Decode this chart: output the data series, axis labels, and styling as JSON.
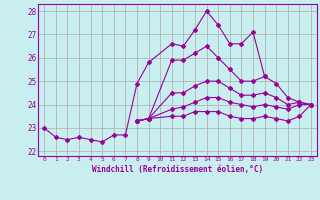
{
  "title": "",
  "xlabel": "Windchill (Refroidissement éolien,°C)",
  "ylabel": "",
  "bg_color": "#c8eef0",
  "line_color": "#990099",
  "grid_color": "#aaaaaa",
  "xlim": [
    -0.5,
    23.5
  ],
  "ylim": [
    21.8,
    28.3
  ],
  "yticks": [
    22,
    23,
    24,
    25,
    26,
    27,
    28
  ],
  "xticks": [
    0,
    1,
    2,
    3,
    4,
    5,
    6,
    7,
    8,
    9,
    10,
    11,
    12,
    13,
    14,
    15,
    16,
    17,
    18,
    19,
    20,
    21,
    22,
    23
  ],
  "lines": [
    {
      "x": [
        0,
        1,
        2,
        3,
        4,
        5,
        6,
        7,
        8,
        9,
        11,
        12,
        13,
        14,
        15,
        16,
        17,
        18,
        19
      ],
      "y": [
        23.0,
        22.6,
        22.5,
        22.6,
        22.5,
        22.4,
        22.7,
        22.7,
        24.9,
        25.8,
        26.6,
        26.5,
        27.2,
        28.0,
        27.4,
        26.6,
        26.6,
        27.1,
        25.2
      ]
    },
    {
      "x": [
        8,
        9,
        11,
        12,
        13,
        14,
        15,
        16,
        17,
        18,
        19,
        20,
        21,
        22,
        23
      ],
      "y": [
        23.3,
        23.4,
        25.9,
        25.9,
        26.2,
        26.5,
        26.0,
        25.5,
        25.0,
        25.0,
        25.2,
        24.9,
        24.3,
        24.1,
        24.0
      ]
    },
    {
      "x": [
        8,
        9,
        11,
        12,
        13,
        14,
        15,
        16,
        17,
        18,
        19,
        20,
        21,
        22,
        23
      ],
      "y": [
        23.3,
        23.4,
        24.5,
        24.5,
        24.8,
        25.0,
        25.0,
        24.7,
        24.4,
        24.4,
        24.5,
        24.3,
        24.0,
        24.1,
        24.0
      ]
    },
    {
      "x": [
        8,
        9,
        11,
        12,
        13,
        14,
        15,
        16,
        17,
        18,
        19,
        20,
        21,
        22,
        23
      ],
      "y": [
        23.3,
        23.4,
        23.8,
        23.9,
        24.1,
        24.3,
        24.3,
        24.1,
        24.0,
        23.9,
        24.0,
        23.9,
        23.8,
        24.0,
        24.0
      ]
    },
    {
      "x": [
        8,
        9,
        11,
        12,
        13,
        14,
        15,
        16,
        17,
        18,
        19,
        20,
        21,
        22,
        23
      ],
      "y": [
        23.3,
        23.4,
        23.5,
        23.5,
        23.7,
        23.7,
        23.7,
        23.5,
        23.4,
        23.4,
        23.5,
        23.4,
        23.3,
        23.5,
        24.0
      ]
    }
  ]
}
